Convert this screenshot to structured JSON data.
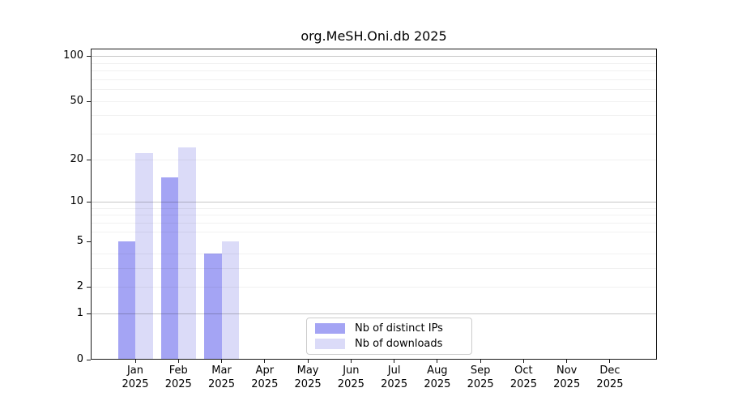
{
  "chart_data": {
    "type": "bar",
    "title": "org.MeSH.Oni.db 2025",
    "x_months": [
      "Jan",
      "Feb",
      "Mar",
      "Apr",
      "May",
      "Jun",
      "Jul",
      "Aug",
      "Sep",
      "Oct",
      "Nov",
      "Dec"
    ],
    "x_year": "2025",
    "xlabel": "",
    "ylabel": "",
    "y_scale": "log1p",
    "ylim": [
      0,
      112
    ],
    "y_tick_labels": [
      0,
      1,
      2,
      5,
      10,
      20,
      50,
      100
    ],
    "y_major_gridlines": [
      1,
      10,
      100
    ],
    "y_minor_gridlines": [
      2,
      3,
      4,
      6,
      7,
      8,
      9,
      20,
      30,
      40,
      50,
      60,
      70,
      80,
      90
    ],
    "grid": "horizontal",
    "legend_position": "bottom-center-inside",
    "series": [
      {
        "name": "Nb of distinct IPs",
        "color": "#a4a4f4",
        "values": [
          5,
          15,
          4,
          0,
          0,
          0,
          0,
          0,
          0,
          0,
          0,
          0
        ]
      },
      {
        "name": "Nb of downloads",
        "color": "#dbdbf8",
        "values": [
          22,
          24,
          5,
          0,
          0,
          0,
          0,
          0,
          0,
          0,
          0,
          0
        ]
      }
    ]
  }
}
